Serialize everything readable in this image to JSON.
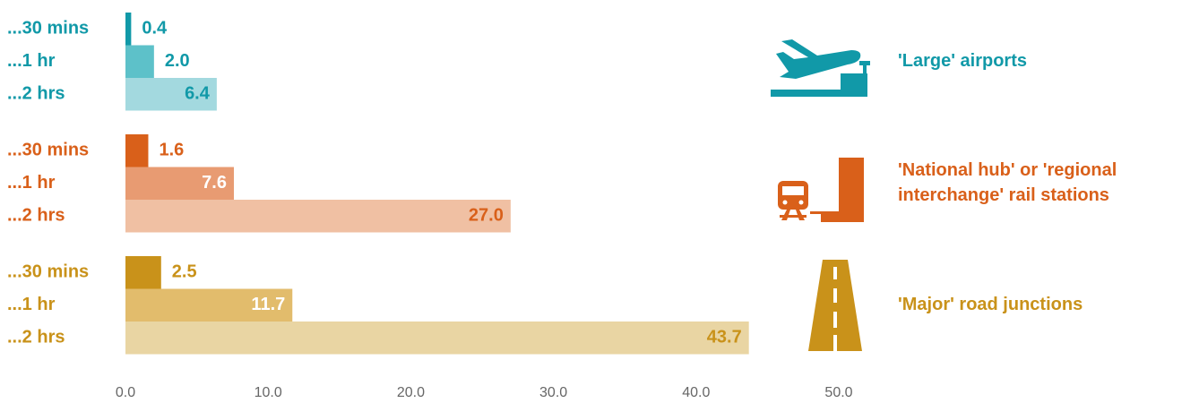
{
  "chart_data": {
    "type": "bar",
    "orientation": "horizontal",
    "xlim": [
      0,
      50
    ],
    "xticks": [
      {
        "value": 0,
        "label": "0.0"
      },
      {
        "value": 10,
        "label": "10.0"
      },
      {
        "value": 20,
        "label": "20.0"
      },
      {
        "value": 30,
        "label": "30.0"
      },
      {
        "value": 40,
        "label": "40.0"
      },
      {
        "value": 50,
        "label": "50.0"
      }
    ],
    "groups": [
      {
        "label": [
          "'Large' airports"
        ],
        "color": "#1199a8",
        "categories": [
          "...30 mins",
          "...1 hr",
          "...2 hrs"
        ],
        "values": [
          0.4,
          2.0,
          6.4
        ],
        "value_labels": [
          "0.4",
          "2.0",
          "6.4"
        ],
        "colors": [
          "#1199a8",
          "#5dc1c9",
          "#a3d9df"
        ]
      },
      {
        "label": [
          "'National hub' or 'regional",
          "interchange' rail stations"
        ],
        "color": "#d9601a",
        "categories": [
          "...30 mins",
          "...1 hr",
          "...2 hrs"
        ],
        "values": [
          1.6,
          7.6,
          27.0
        ],
        "value_labels": [
          "1.6",
          "7.6",
          "27.0"
        ],
        "colors": [
          "#d9601a",
          "#e89b72",
          "#f0c0a3"
        ]
      },
      {
        "label": [
          "'Major' road junctions"
        ],
        "color": "#c9921a",
        "categories": [
          "...30 mins",
          "...1 hr",
          "...2 hrs"
        ],
        "values": [
          2.5,
          11.7,
          43.7
        ],
        "value_labels": [
          "2.5",
          "11.7",
          "43.7"
        ],
        "colors": [
          "#c9921a",
          "#e2bc6c",
          "#e9d5a3"
        ]
      }
    ]
  }
}
